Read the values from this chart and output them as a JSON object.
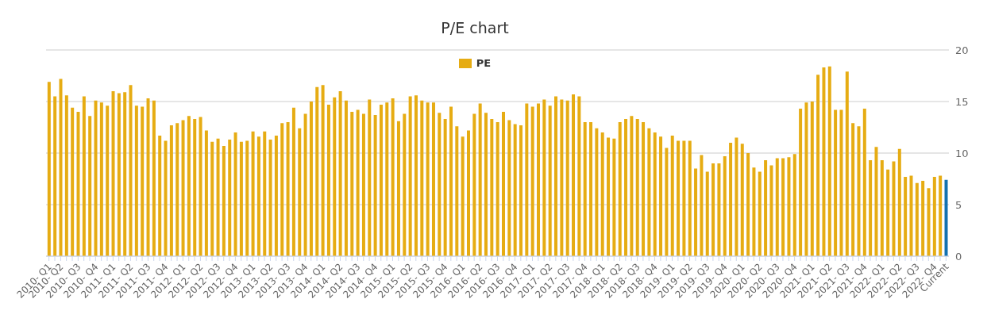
{
  "chart_data": {
    "type": "bar",
    "title": "P/E chart",
    "categories": [
      "2010- Q1",
      null,
      "2010- Q2",
      null,
      null,
      "2010- Q3",
      null,
      null,
      "2010- Q4",
      null,
      null,
      "2011- Q1",
      null,
      null,
      "2011- Q2",
      null,
      null,
      "2011- Q3",
      null,
      null,
      "2011- Q4",
      null,
      null,
      "2012- Q1",
      null,
      null,
      "2012- Q2",
      null,
      null,
      "2012- Q3",
      null,
      null,
      "2012- Q4",
      null,
      null,
      "2013- Q1",
      null,
      null,
      "2013- Q2",
      null,
      null,
      "2013- Q3",
      null,
      null,
      "2013- Q4",
      null,
      null,
      "2014- Q1",
      null,
      null,
      "2014- Q2",
      null,
      null,
      "2014- Q3",
      null,
      null,
      "2014- Q4",
      null,
      null,
      "2015- Q1",
      null,
      null,
      "2015- Q2",
      null,
      null,
      "2015- Q3",
      null,
      null,
      "2015- Q4",
      null,
      null,
      "2016- Q1",
      null,
      null,
      "2016- Q2",
      null,
      null,
      "2016- Q3",
      null,
      null,
      "2016- Q4",
      null,
      null,
      "2017- Q1",
      null,
      null,
      "2017- Q2",
      null,
      null,
      "2017- Q3",
      null,
      null,
      "2017- Q4",
      null,
      null,
      "2018- Q1",
      null,
      null,
      "2018- Q2",
      null,
      null,
      "2018- Q3",
      null,
      null,
      "2018- Q4",
      null,
      null,
      "2019- Q1",
      null,
      null,
      "2019- Q2",
      null,
      null,
      "2019- Q3",
      null,
      null,
      "2019- Q4",
      null,
      null,
      "2020- Q1",
      null,
      null,
      "2020- Q2",
      null,
      null,
      "2020- Q3",
      null,
      null,
      "2020- Q4",
      null,
      null,
      "2021- Q1",
      null,
      null,
      "2021- Q2",
      null,
      null,
      "2021- Q3",
      null,
      null,
      "2021- Q4",
      null,
      null,
      "2022- Q1",
      null,
      null,
      "2022- Q2",
      null,
      null,
      "2022- Q3",
      null,
      null,
      "2022- Q4",
      null,
      "Current"
    ],
    "series": [
      {
        "name": "PE",
        "color": "#e6ac13",
        "colors": [
          "#e6ac13",
          "#e6ac13",
          "#e6ac13",
          "#e6ac13",
          "#e6ac13",
          "#e6ac13",
          "#e6ac13",
          "#e6ac13",
          "#e6ac13",
          "#e6ac13",
          "#e6ac13",
          "#e6ac13",
          "#e6ac13",
          "#e6ac13",
          "#e6ac13",
          "#e6ac13",
          "#e6ac13",
          "#e6ac13",
          "#e6ac13",
          "#e6ac13",
          "#e6ac13",
          "#e6ac13",
          "#e6ac13",
          "#e6ac13",
          "#e6ac13",
          "#e6ac13",
          "#e6ac13",
          "#e6ac13",
          "#e6ac13",
          "#e6ac13",
          "#e6ac13",
          "#e6ac13",
          "#e6ac13",
          "#e6ac13",
          "#e6ac13",
          "#e6ac13",
          "#e6ac13",
          "#e6ac13",
          "#e6ac13",
          "#e6ac13",
          "#e6ac13",
          "#e6ac13",
          "#e6ac13",
          "#e6ac13",
          "#e6ac13",
          "#e6ac13",
          "#e6ac13",
          "#e6ac13",
          "#e6ac13",
          "#e6ac13",
          "#e6ac13",
          "#e6ac13",
          "#e6ac13",
          "#e6ac13",
          "#e6ac13",
          "#e6ac13",
          "#e6ac13",
          "#e6ac13",
          "#e6ac13",
          "#e6ac13",
          "#e6ac13",
          "#e6ac13",
          "#e6ac13",
          "#e6ac13",
          "#e6ac13",
          "#e6ac13",
          "#e6ac13",
          "#e6ac13",
          "#e6ac13",
          "#e6ac13",
          "#e6ac13",
          "#e6ac13",
          "#e6ac13",
          "#e6ac13",
          "#e6ac13",
          "#e6ac13",
          "#e6ac13",
          "#e6ac13",
          "#e6ac13",
          "#e6ac13",
          "#e6ac13",
          "#e6ac13",
          "#e6ac13",
          "#e6ac13",
          "#e6ac13",
          "#e6ac13",
          "#e6ac13",
          "#e6ac13",
          "#e6ac13",
          "#e6ac13",
          "#e6ac13",
          "#e6ac13",
          "#e6ac13",
          "#e6ac13",
          "#e6ac13",
          "#e6ac13",
          "#e6ac13",
          "#e6ac13",
          "#e6ac13",
          "#e6ac13",
          "#e6ac13",
          "#e6ac13",
          "#e6ac13",
          "#e6ac13",
          "#e6ac13",
          "#e6ac13",
          "#e6ac13",
          "#e6ac13",
          "#e6ac13",
          "#e6ac13",
          "#e6ac13",
          "#e6ac13",
          "#e6ac13",
          "#e6ac13",
          "#e6ac13",
          "#e6ac13",
          "#e6ac13",
          "#e6ac13",
          "#e6ac13",
          "#e6ac13",
          "#e6ac13",
          "#e6ac13",
          "#e6ac13",
          "#e6ac13",
          "#e6ac13",
          "#e6ac13",
          "#e6ac13",
          "#e6ac13",
          "#e6ac13",
          "#e6ac13",
          "#e6ac13",
          "#e6ac13",
          "#e6ac13",
          "#e6ac13",
          "#e6ac13",
          "#e6ac13",
          "#e6ac13",
          "#e6ac13",
          "#e6ac13",
          "#e6ac13",
          "#e6ac13",
          "#e6ac13",
          "#e6ac13",
          "#e6ac13",
          "#e6ac13",
          "#e6ac13",
          "#e6ac13",
          "#e6ac13",
          "#e6ac13",
          "#e6ac13",
          "#e6ac13",
          "#e6ac13",
          "#e6ac13",
          "#e6ac13",
          "#1271b0"
        ],
        "values": [
          16.9,
          15.5,
          17.2,
          15.6,
          14.4,
          14.0,
          15.5,
          13.6,
          15.1,
          14.9,
          14.6,
          16.0,
          15.8,
          15.9,
          16.6,
          14.6,
          14.5,
          15.3,
          15.1,
          11.7,
          11.2,
          12.7,
          12.9,
          13.2,
          13.6,
          13.3,
          13.5,
          12.2,
          11.1,
          11.4,
          10.7,
          11.3,
          12.0,
          11.1,
          11.2,
          12.1,
          11.6,
          12.1,
          11.3,
          11.7,
          12.9,
          13.0,
          14.4,
          12.4,
          13.8,
          15.0,
          16.4,
          16.6,
          14.7,
          15.4,
          16.0,
          15.1,
          14.0,
          14.2,
          13.8,
          15.2,
          13.7,
          14.7,
          14.9,
          15.3,
          13.1,
          13.8,
          15.5,
          15.6,
          15.1,
          14.9,
          14.9,
          13.9,
          13.3,
          14.5,
          12.6,
          11.6,
          12.2,
          13.8,
          14.8,
          13.9,
          13.3,
          13.0,
          14.0,
          13.2,
          12.8,
          12.7,
          14.8,
          14.5,
          14.8,
          15.2,
          14.6,
          15.5,
          15.2,
          15.1,
          15.7,
          15.5,
          13.0,
          13.0,
          12.4,
          12.0,
          11.5,
          11.4,
          13.0,
          13.3,
          13.6,
          13.3,
          13.0,
          12.4,
          12.0,
          11.6,
          10.5,
          11.7,
          11.2,
          11.2,
          11.2,
          8.5,
          9.8,
          8.2,
          9.0,
          9.0,
          9.7,
          11.0,
          11.5,
          10.9,
          10.0,
          8.6,
          8.2,
          9.3,
          8.8,
          9.5,
          9.5,
          9.6,
          9.9,
          14.3,
          14.9,
          15.0,
          17.6,
          18.3,
          18.4,
          14.2,
          14.2,
          17.9,
          12.9,
          12.6,
          14.3,
          9.3,
          10.6,
          9.3,
          8.4,
          9.2,
          10.4,
          7.7,
          7.8,
          7.1,
          7.3,
          6.6,
          7.7,
          7.8,
          7.4
        ]
      }
    ],
    "ylim": [
      0,
      20
    ],
    "yticks": [
      0,
      5,
      10,
      15,
      20
    ],
    "grid": "y",
    "legend": "top"
  }
}
